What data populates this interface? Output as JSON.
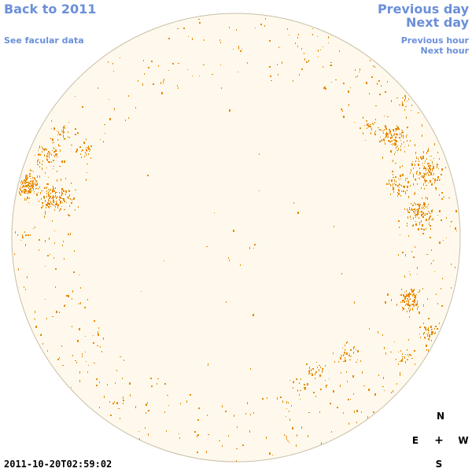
{
  "nav": {
    "back_label": "Back to 2011",
    "facular_label": "See facular data",
    "prev_day_label": "Previous day",
    "next_day_label": "Next day",
    "prev_hour_label": "Previous hour",
    "next_hour_label": "Next hour"
  },
  "timestamp": "2011-10-20T02:59:02",
  "compass": {
    "north": "N",
    "south": "S",
    "east": "E",
    "west": "W",
    "center": "+"
  },
  "colors": {
    "link": "#6b8fd9",
    "disk_fill": "#fef9ec",
    "disk_edge": "#c8bfa8",
    "facula": "#e88a00"
  }
}
